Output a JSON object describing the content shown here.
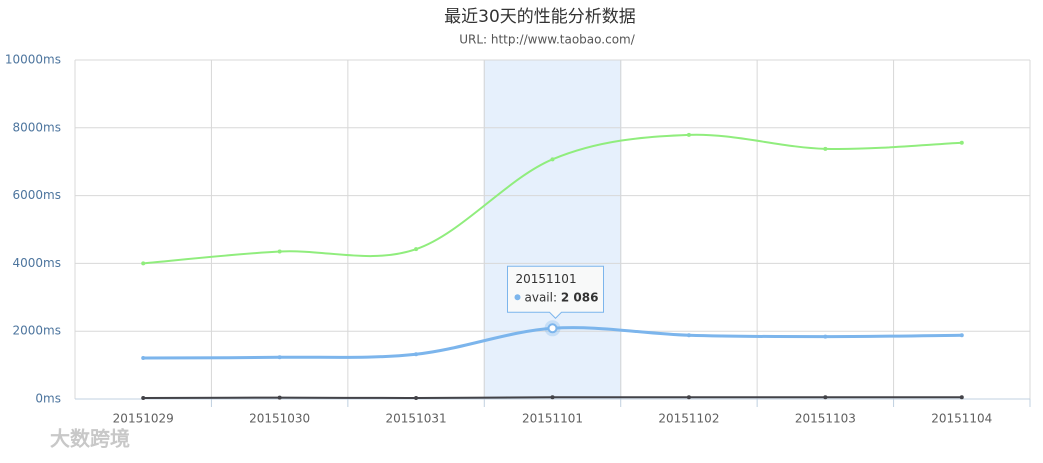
{
  "chart_data": {
    "type": "line",
    "title": "最近30天的性能分析数据",
    "subtitle": "URL: http://www.taobao.com/",
    "categories": [
      "20151029",
      "20151030",
      "20151031",
      "20151101",
      "20151102",
      "20151103",
      "20151104"
    ],
    "series": [
      {
        "color": "#90ed7d",
        "values": [
          4000,
          4350,
          4420,
          7070,
          7790,
          7380,
          7560
        ]
      },
      {
        "name": "avail",
        "color": "#7cb5ec",
        "values": [
          1210,
          1230,
          1320,
          2086,
          1880,
          1840,
          1880
        ],
        "value_labels": [
          null,
          null,
          null,
          "2 086",
          null,
          null,
          null
        ]
      },
      {
        "color": "#434348",
        "values": [
          30,
          40,
          30,
          50,
          50,
          50,
          50
        ]
      }
    ],
    "ylim": [
      0,
      10000
    ],
    "yticks": [
      {
        "value": 0,
        "label": "0ms"
      },
      {
        "value": 2000,
        "label": "2000ms"
      },
      {
        "value": 4000,
        "label": "4000ms"
      },
      {
        "value": 6000,
        "label": "6000ms"
      },
      {
        "value": 8000,
        "label": "8000ms"
      },
      {
        "value": 10000,
        "label": "10000ms"
      }
    ],
    "grid": true,
    "tooltip": {
      "title": "20151101",
      "series_index": 1
    },
    "watermark": "大数跨境"
  }
}
